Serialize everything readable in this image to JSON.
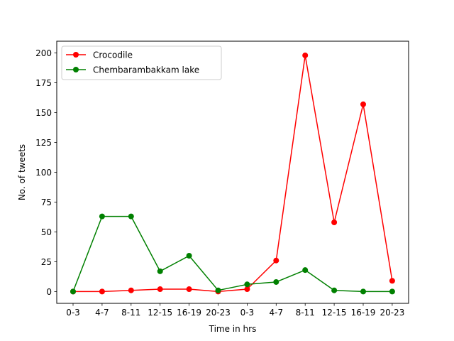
{
  "chart_data": {
    "type": "line",
    "title": "",
    "xlabel": "Time in hrs",
    "ylabel": "No. of tweets",
    "categories": [
      "0-3",
      "4-7",
      "8-11",
      "12-15",
      "16-19",
      "20-23",
      "0-3",
      "4-7",
      "8-11",
      "12-15",
      "16-19",
      "20-23"
    ],
    "ylim": [
      -9.9,
      209.9
    ],
    "yticks": [
      0,
      25,
      50,
      75,
      100,
      125,
      150,
      175,
      200
    ],
    "grid": false,
    "legend_position": "top-left",
    "series": [
      {
        "name": "Crocodile",
        "color": "#ff0000",
        "values": [
          0,
          0,
          1,
          2,
          2,
          0,
          2,
          26,
          198,
          58,
          157,
          9
        ]
      },
      {
        "name": "Chembarambakkam lake",
        "color": "#008000",
        "values": [
          0,
          63,
          63,
          17,
          30,
          1,
          6,
          8,
          18,
          1,
          0,
          0
        ]
      }
    ]
  }
}
